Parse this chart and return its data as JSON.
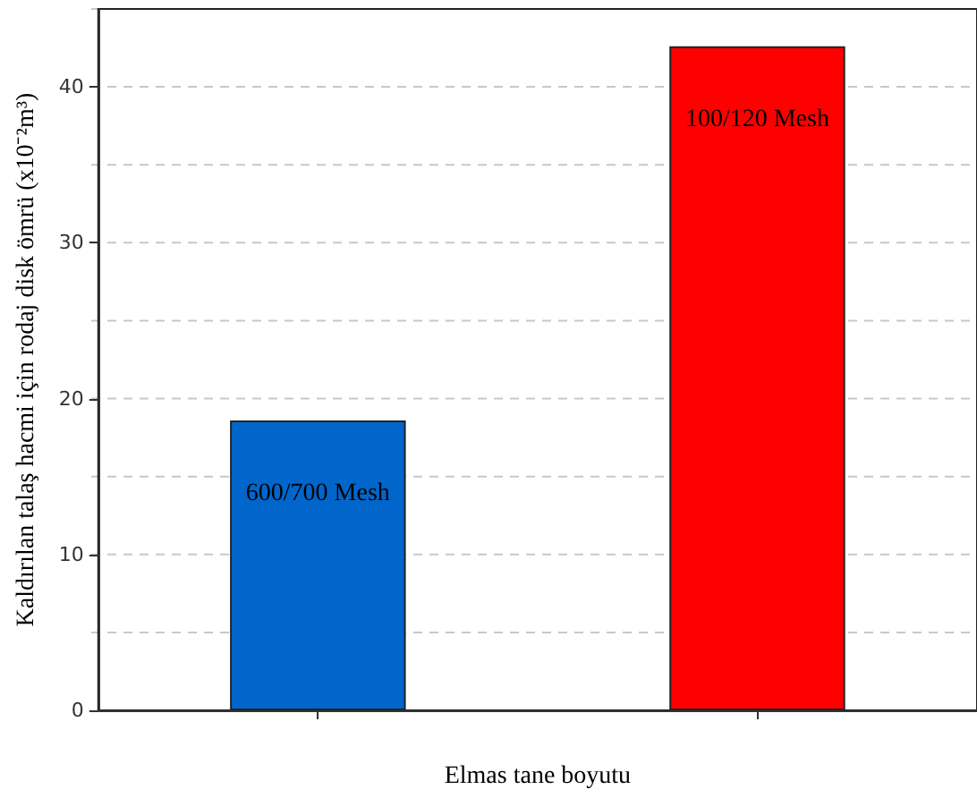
{
  "chart_data": {
    "type": "bar",
    "xlabel": "Elmas tane boyutu",
    "ylabel": "Kaldırılan talaş hacmi için rodaj disk ömrü (x10⁻²m³)",
    "categories": [
      "600/700 Mesh",
      "100/120 Mesh"
    ],
    "values": [
      18.6,
      42.6
    ],
    "colors": [
      "#0066cc",
      "#ff0000"
    ],
    "ylim": [
      0,
      45
    ],
    "yticks": [
      0,
      {
        "value": 5,
        "label": null
      },
      10,
      {
        "value": 15,
        "label": null
      },
      20,
      {
        "value": 25,
        "label": null
      },
      30,
      {
        "value": 35,
        "label": null
      },
      40,
      {
        "value": 45,
        "label": null
      }
    ],
    "grid": "y"
  }
}
